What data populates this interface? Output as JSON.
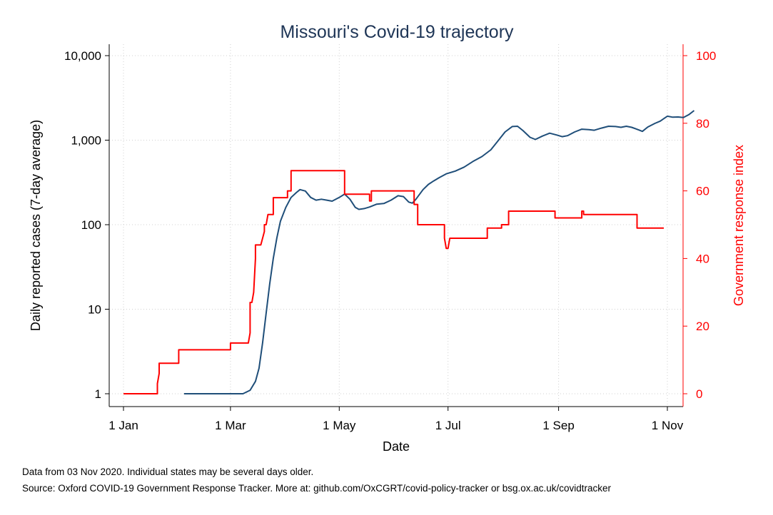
{
  "chart_data": {
    "type": "line",
    "title": "Missouri's Covid-19 trajectory",
    "xlabel": "Date",
    "ylabel_left": "Daily reported cases (7-day average)",
    "ylabel_right": "Government response index",
    "left_axis": {
      "scale": "log",
      "ylim": [
        1,
        10000
      ],
      "ticks": [
        1,
        10,
        100,
        1000,
        10000
      ],
      "tick_labels": [
        "1",
        "10",
        "100",
        "1,000",
        "10,000"
      ]
    },
    "right_axis": {
      "scale": "linear",
      "ylim": [
        0,
        100
      ],
      "ticks": [
        0,
        20,
        40,
        60,
        80,
        100
      ],
      "tick_labels": [
        "0",
        "20",
        "40",
        "60",
        "80",
        "100"
      ],
      "color": "#ff0000"
    },
    "x_ticks": [
      {
        "date": "2020-01-01",
        "label": "1 Jan"
      },
      {
        "date": "2020-03-01",
        "label": "1 Mar"
      },
      {
        "date": "2020-05-01",
        "label": "1 May"
      },
      {
        "date": "2020-07-01",
        "label": "1 Jul"
      },
      {
        "date": "2020-09-01",
        "label": "1 Sep"
      },
      {
        "date": "2020-11-01",
        "label": "1 Nov"
      }
    ],
    "grid": true,
    "series": [
      {
        "axis": "left",
        "color": "#1f4e79",
        "points": [
          [
            "2020-02-04",
            1
          ],
          [
            "2020-03-08",
            1
          ],
          [
            "2020-03-12",
            1.1
          ],
          [
            "2020-03-15",
            1.4
          ],
          [
            "2020-03-17",
            2
          ],
          [
            "2020-03-19",
            4
          ],
          [
            "2020-03-21",
            9
          ],
          [
            "2020-03-23",
            20
          ],
          [
            "2020-03-25",
            40
          ],
          [
            "2020-03-27",
            70
          ],
          [
            "2020-03-29",
            110
          ],
          [
            "2020-04-01",
            160
          ],
          [
            "2020-04-04",
            210
          ],
          [
            "2020-04-07",
            240
          ],
          [
            "2020-04-09",
            260
          ],
          [
            "2020-04-12",
            250
          ],
          [
            "2020-04-15",
            210
          ],
          [
            "2020-04-18",
            195
          ],
          [
            "2020-04-21",
            200
          ],
          [
            "2020-04-24",
            195
          ],
          [
            "2020-04-27",
            190
          ],
          [
            "2020-05-01",
            210
          ],
          [
            "2020-05-04",
            230
          ],
          [
            "2020-05-07",
            200
          ],
          [
            "2020-05-10",
            160
          ],
          [
            "2020-05-12",
            152
          ],
          [
            "2020-05-15",
            155
          ],
          [
            "2020-05-18",
            162
          ],
          [
            "2020-05-22",
            175
          ],
          [
            "2020-05-26",
            178
          ],
          [
            "2020-05-30",
            195
          ],
          [
            "2020-06-03",
            220
          ],
          [
            "2020-06-06",
            215
          ],
          [
            "2020-06-09",
            185
          ],
          [
            "2020-06-11",
            180
          ],
          [
            "2020-06-13",
            200
          ],
          [
            "2020-06-17",
            260
          ],
          [
            "2020-06-20",
            300
          ],
          [
            "2020-06-23",
            330
          ],
          [
            "2020-06-26",
            360
          ],
          [
            "2020-06-30",
            400
          ],
          [
            "2020-07-05",
            430
          ],
          [
            "2020-07-10",
            480
          ],
          [
            "2020-07-15",
            560
          ],
          [
            "2020-07-20",
            640
          ],
          [
            "2020-07-25",
            770
          ],
          [
            "2020-07-29",
            980
          ],
          [
            "2020-08-02",
            1250
          ],
          [
            "2020-08-06",
            1450
          ],
          [
            "2020-08-09",
            1460
          ],
          [
            "2020-08-12",
            1300
          ],
          [
            "2020-08-16",
            1080
          ],
          [
            "2020-08-19",
            1020
          ],
          [
            "2020-08-23",
            1120
          ],
          [
            "2020-08-27",
            1210
          ],
          [
            "2020-08-31",
            1150
          ],
          [
            "2020-09-03",
            1100
          ],
          [
            "2020-09-06",
            1130
          ],
          [
            "2020-09-10",
            1250
          ],
          [
            "2020-09-14",
            1350
          ],
          [
            "2020-09-18",
            1330
          ],
          [
            "2020-09-21",
            1310
          ],
          [
            "2020-09-25",
            1390
          ],
          [
            "2020-09-29",
            1460
          ],
          [
            "2020-10-03",
            1450
          ],
          [
            "2020-10-06",
            1420
          ],
          [
            "2020-10-09",
            1460
          ],
          [
            "2020-10-12",
            1420
          ],
          [
            "2020-10-16",
            1320
          ],
          [
            "2020-10-18",
            1270
          ],
          [
            "2020-10-21",
            1430
          ],
          [
            "2020-10-25",
            1580
          ],
          [
            "2020-10-28",
            1680
          ],
          [
            "2020-10-30",
            1800
          ],
          [
            "2020-11-01",
            1920
          ],
          [
            "2020-11-04",
            1870
          ],
          [
            "2020-11-07",
            1880
          ],
          [
            "2020-11-10",
            1850
          ],
          [
            "2020-11-13",
            2000
          ],
          [
            "2020-11-16",
            2240
          ]
        ]
      },
      {
        "axis": "right",
        "color": "#ff0000",
        "points": [
          [
            "2020-01-01",
            0
          ],
          [
            "2020-01-20",
            0
          ],
          [
            "2020-01-20",
            3
          ],
          [
            "2020-01-21",
            6
          ],
          [
            "2020-01-21",
            9
          ],
          [
            "2020-02-01",
            9
          ],
          [
            "2020-02-01",
            13
          ],
          [
            "2020-03-01",
            13
          ],
          [
            "2020-03-01",
            15
          ],
          [
            "2020-03-11",
            15
          ],
          [
            "2020-03-12",
            18
          ],
          [
            "2020-03-12",
            27
          ],
          [
            "2020-03-13",
            27
          ],
          [
            "2020-03-14",
            30
          ],
          [
            "2020-03-15",
            40
          ],
          [
            "2020-03-15",
            44
          ],
          [
            "2020-03-18",
            44
          ],
          [
            "2020-03-19",
            46
          ],
          [
            "2020-03-20",
            48
          ],
          [
            "2020-03-20",
            50
          ],
          [
            "2020-03-21",
            50
          ],
          [
            "2020-03-22",
            53
          ],
          [
            "2020-03-25",
            53
          ],
          [
            "2020-03-25",
            58
          ],
          [
            "2020-04-02",
            58
          ],
          [
            "2020-04-02",
            60
          ],
          [
            "2020-04-04",
            60
          ],
          [
            "2020-04-04",
            66
          ],
          [
            "2020-05-04",
            66
          ],
          [
            "2020-05-04",
            59
          ],
          [
            "2020-05-18",
            59
          ],
          [
            "2020-05-18",
            57
          ],
          [
            "2020-05-19",
            57
          ],
          [
            "2020-05-19",
            60
          ],
          [
            "2020-06-12",
            60
          ],
          [
            "2020-06-12",
            56
          ],
          [
            "2020-06-14",
            56
          ],
          [
            "2020-06-14",
            50
          ],
          [
            "2020-06-29",
            50
          ],
          [
            "2020-06-29",
            46
          ],
          [
            "2020-06-30",
            43
          ],
          [
            "2020-07-01",
            43
          ],
          [
            "2020-07-02",
            46
          ],
          [
            "2020-07-23",
            46
          ],
          [
            "2020-07-23",
            49
          ],
          [
            "2020-07-31",
            49
          ],
          [
            "2020-07-31",
            50
          ],
          [
            "2020-08-04",
            50
          ],
          [
            "2020-08-04",
            54
          ],
          [
            "2020-08-30",
            54
          ],
          [
            "2020-08-30",
            52
          ],
          [
            "2020-09-14",
            52
          ],
          [
            "2020-09-14",
            54
          ],
          [
            "2020-09-15",
            54
          ],
          [
            "2020-09-15",
            53
          ],
          [
            "2020-10-15",
            53
          ],
          [
            "2020-10-15",
            49
          ],
          [
            "2020-10-30",
            49
          ]
        ]
      }
    ]
  },
  "footer": {
    "note1": "Data from 03 Nov 2020. Individual states may be several days older.",
    "note2": "Source: Oxford COVID-19 Government Response Tracker. More at: github.com/OxCGRT/covid-policy-tracker or bsg.ox.ac.uk/covidtracker"
  }
}
